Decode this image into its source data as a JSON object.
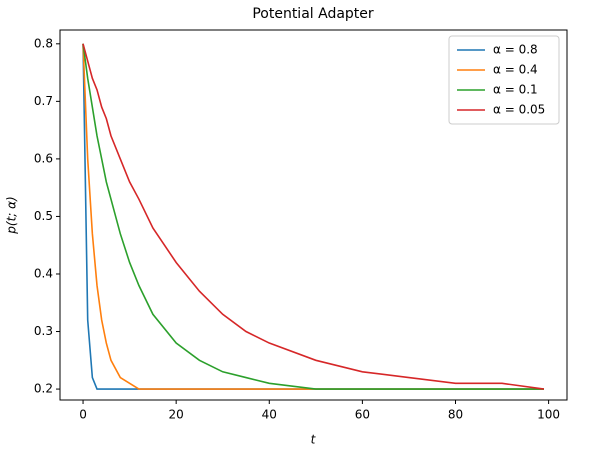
{
  "chart_data": {
    "type": "line",
    "title": "Potential Adapter",
    "xlabel": "t",
    "ylabel": "p(t; α)",
    "x": [
      0,
      1,
      2,
      3,
      4,
      5,
      6,
      8,
      10,
      12,
      15,
      20,
      25,
      30,
      35,
      40,
      50,
      60,
      70,
      80,
      90,
      99
    ],
    "series": [
      {
        "name": "α = 0.8",
        "color": "#1f77b4",
        "values": [
          0.8,
          0.32,
          0.22,
          0.2,
          0.2,
          0.2,
          0.2,
          0.2,
          0.2,
          0.2,
          0.2,
          0.2,
          0.2,
          0.2,
          0.2,
          0.2,
          0.2,
          0.2,
          0.2,
          0.2,
          0.2,
          0.2
        ]
      },
      {
        "name": "α = 0.4",
        "color": "#ff7f0e",
        "values": [
          0.8,
          0.6,
          0.47,
          0.38,
          0.32,
          0.28,
          0.25,
          0.22,
          0.21,
          0.2,
          0.2,
          0.2,
          0.2,
          0.2,
          0.2,
          0.2,
          0.2,
          0.2,
          0.2,
          0.2,
          0.2,
          0.2
        ]
      },
      {
        "name": "α = 0.1",
        "color": "#2ca02c",
        "values": [
          0.8,
          0.74,
          0.69,
          0.64,
          0.6,
          0.56,
          0.53,
          0.47,
          0.42,
          0.38,
          0.33,
          0.28,
          0.25,
          0.23,
          0.22,
          0.21,
          0.2,
          0.2,
          0.2,
          0.2,
          0.2,
          0.2
        ]
      },
      {
        "name": "α = 0.05",
        "color": "#d62728",
        "values": [
          0.8,
          0.77,
          0.74,
          0.72,
          0.69,
          0.67,
          0.64,
          0.6,
          0.56,
          0.53,
          0.48,
          0.42,
          0.37,
          0.33,
          0.3,
          0.28,
          0.25,
          0.23,
          0.22,
          0.21,
          0.21,
          0.2
        ]
      }
    ],
    "xlim": [
      -4.95,
      103.95
    ],
    "xticks": [
      0,
      20,
      40,
      60,
      80,
      100
    ],
    "ylim": [
      0.181,
      0.824
    ],
    "yticks": [
      0.2,
      0.3,
      0.4,
      0.5,
      0.6,
      0.7,
      0.8
    ],
    "legend": "upper right",
    "grid": false
  }
}
